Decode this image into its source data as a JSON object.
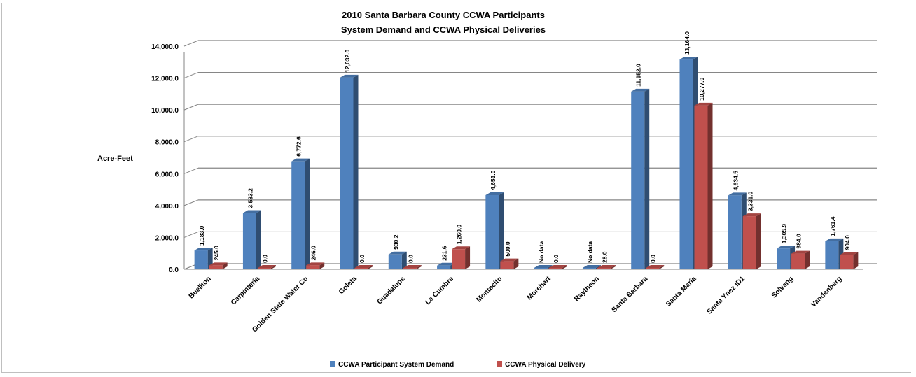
{
  "chart_data": {
    "type": "bar",
    "title": [
      "2010 Santa Barbara County CCWA Participants",
      "System Demand and CCWA Physical Deliveries"
    ],
    "ylabel": "Acre-Feet",
    "ylim": [
      0,
      14000
    ],
    "yticks": [
      "0.0",
      "2,000.0",
      "4,000.0",
      "6,000.0",
      "8,000.0",
      "10,000.0",
      "12,000.0",
      "14,000.0"
    ],
    "categories": [
      "Buellton",
      "Carpinteria",
      "Golden State Water Co",
      "Goleta",
      "Guadalupe",
      "La Cumbre",
      "Montecito",
      "Morehart",
      "Raytheon",
      "Santa Barbara",
      "Santa Maria",
      "Santa Ynez ID1",
      "Solvang",
      "Vandenberg"
    ],
    "series": [
      {
        "name": "CCWA Participant System Demand",
        "color": "#4f81bd",
        "values": [
          1183.0,
          3533.2,
          6772.6,
          12032.0,
          930.2,
          231.6,
          4653.0,
          0,
          0,
          11152.0,
          13164.0,
          4634.5,
          1305.9,
          1761.4
        ],
        "labels": [
          "1,183.0",
          "3,533.2",
          "6,772.6",
          "12,032.0",
          "930.2",
          "231.6",
          "4,653.0",
          "No data",
          "No data",
          "11,152.0",
          "13,164.0",
          "4,634.5",
          "1,305.9",
          "1,761.4"
        ]
      },
      {
        "name": "CCWA Physical Delivery",
        "color": "#c0504d",
        "values": [
          245.0,
          0.0,
          246.0,
          0.0,
          0.0,
          1260.0,
          500.0,
          0.0,
          28.0,
          0.0,
          10277.0,
          3331.0,
          984.0,
          904.0
        ],
        "labels": [
          "245.0",
          "0.0",
          "246.0",
          "0.0",
          "0.0",
          "1,260.0",
          "500.0",
          "0.0",
          "28.0",
          "0.0",
          "10,277.0",
          "3,331.0",
          "984.0",
          "904.0"
        ]
      }
    ],
    "grid": true,
    "legend": "bottom"
  }
}
